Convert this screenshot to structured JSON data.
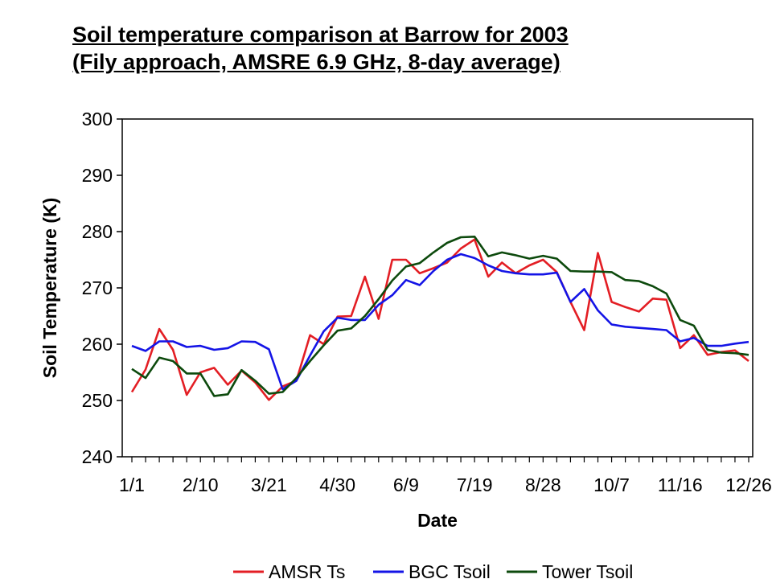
{
  "title": {
    "line1": "Soil temperature comparison at Barrow for 2003",
    "line2": "(Fily approach, AMSRE 6.9 GHz, 8-day average)"
  },
  "chart_data": {
    "type": "line",
    "title": "Soil temperature comparison at Barrow for 2003 (Fily approach, AMSRE 6.9 GHz, 8-day average)",
    "xlabel": "Date",
    "ylabel": "Soil Temperature (K)",
    "ylim": [
      240,
      300
    ],
    "yticks": [
      "240",
      "250",
      "260",
      "270",
      "280",
      "290",
      "300"
    ],
    "xtick_labels": [
      "1/1",
      "2/10",
      "3/21",
      "4/30",
      "6/9",
      "7/19",
      "8/28",
      "10/7",
      "11/16",
      "12/26"
    ],
    "grid": false,
    "legend_position": "bottom",
    "series": [
      {
        "name": "AMSR Ts",
        "color": "#e31e24",
        "values": [
          251.5,
          255.5,
          262.7,
          259.0,
          251.0,
          255.0,
          255.8,
          252.8,
          255.3,
          253.2,
          250.1,
          252.5,
          253.5,
          261.6,
          260.0,
          264.9,
          265.0,
          272.0,
          264.5,
          275.0,
          275.0,
          272.6,
          273.5,
          274.5,
          277.0,
          278.6,
          272.0,
          274.5,
          272.6,
          274.0,
          275.0,
          272.8,
          267.5,
          262.5,
          276.2,
          267.5,
          266.6,
          265.8,
          268.1,
          267.9,
          259.3,
          261.6,
          258.1,
          258.6,
          258.9,
          257.0
        ]
      },
      {
        "name": "BGC Tsoil",
        "color": "#1414e6",
        "values": [
          259.7,
          258.8,
          260.5,
          260.5,
          259.5,
          259.7,
          259.0,
          259.3,
          260.5,
          260.4,
          259.1,
          252.0,
          253.5,
          258.0,
          262.3,
          264.7,
          264.3,
          264.3,
          267.0,
          268.7,
          271.4,
          270.5,
          273.0,
          275.0,
          276.0,
          275.3,
          274.0,
          273.0,
          272.6,
          272.4,
          272.4,
          272.7,
          267.5,
          269.8,
          266.0,
          263.5,
          263.1,
          262.9,
          262.7,
          262.5,
          260.5,
          261.1,
          259.7,
          259.7,
          260.1,
          260.4
        ]
      },
      {
        "name": "Tower Tsoil",
        "color": "#0d4a0d",
        "values": [
          255.6,
          254.0,
          257.6,
          257.0,
          254.8,
          254.8,
          250.8,
          251.1,
          255.4,
          253.5,
          251.2,
          251.5,
          254.0,
          257.0,
          259.8,
          262.4,
          262.8,
          265.0,
          268.0,
          271.3,
          273.8,
          274.4,
          276.3,
          278.0,
          279.0,
          279.1,
          275.6,
          276.3,
          275.8,
          275.2,
          275.7,
          275.2,
          273.0,
          272.9,
          272.9,
          272.8,
          271.4,
          271.2,
          270.3,
          269.0,
          264.3,
          263.3,
          259.0,
          258.5,
          258.4,
          258.1
        ]
      }
    ]
  }
}
